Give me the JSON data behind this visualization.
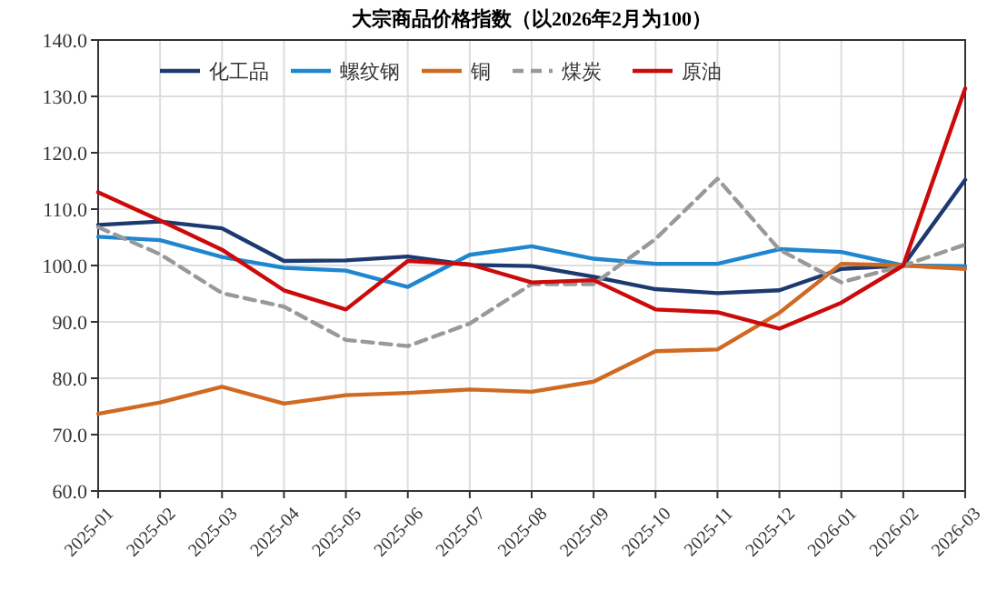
{
  "chart_data": {
    "type": "line",
    "title": "大宗商品价格指数（以2026年2月为100）",
    "categories": [
      "2025-01",
      "2025-02",
      "2025-03",
      "2025-04",
      "2025-05",
      "2025-06",
      "2025-07",
      "2025-08",
      "2025-09",
      "2025-10",
      "2025-11",
      "2025-12",
      "2026-01",
      "2026-02",
      "2026-03"
    ],
    "series": [
      {
        "name": "化工品",
        "color": "#1c3a70",
        "line_style": "solid",
        "values": [
          107.2,
          107.8,
          106.6,
          100.8,
          100.9,
          101.6,
          100.1,
          99.9,
          98.0,
          95.8,
          95.1,
          95.6,
          99.4,
          100,
          115.2
        ]
      },
      {
        "name": "螺纹钢",
        "color": "#1f86d0",
        "line_style": "solid",
        "values": [
          105.1,
          104.5,
          101.5,
          99.6,
          99.1,
          96.2,
          101.9,
          103.4,
          101.2,
          100.3,
          100.3,
          102.9,
          102.4,
          100,
          99.9
        ]
      },
      {
        "name": "铜",
        "color": "#d06a22",
        "line_style": "solid",
        "values": [
          73.7,
          75.7,
          78.5,
          75.5,
          77.0,
          77.4,
          78.0,
          77.6,
          79.4,
          84.8,
          85.1,
          91.6,
          100.3,
          100,
          99.4
        ]
      },
      {
        "name": "煤炭",
        "color": "#999999",
        "line_style": "dashed",
        "values": [
          106.8,
          102.0,
          95.1,
          92.7,
          86.8,
          85.7,
          89.7,
          96.7,
          96.7,
          104.7,
          115.4,
          102.8,
          97.0,
          100,
          103.7
        ]
      },
      {
        "name": "原油",
        "color": "#cc0a0a",
        "line_style": "solid",
        "values": [
          113.0,
          108.0,
          102.8,
          95.6,
          92.2,
          100.8,
          100.2,
          97.0,
          97.4,
          92.2,
          91.7,
          88.8,
          93.4,
          100,
          131.4
        ]
      }
    ],
    "ylim": [
      60,
      140
    ],
    "yticks": [
      {
        "value": 60,
        "label": "60.0"
      },
      {
        "value": 70,
        "label": "70.0"
      },
      {
        "value": 80,
        "label": "80.0"
      },
      {
        "value": 90,
        "label": "90.0"
      },
      {
        "value": 100,
        "label": "100.0"
      },
      {
        "value": 110,
        "label": "110.0"
      },
      {
        "value": 120,
        "label": "120.0"
      },
      {
        "value": 130,
        "label": "130.0"
      },
      {
        "value": 140,
        "label": "140.0"
      }
    ],
    "grid": true,
    "legend": "top"
  }
}
